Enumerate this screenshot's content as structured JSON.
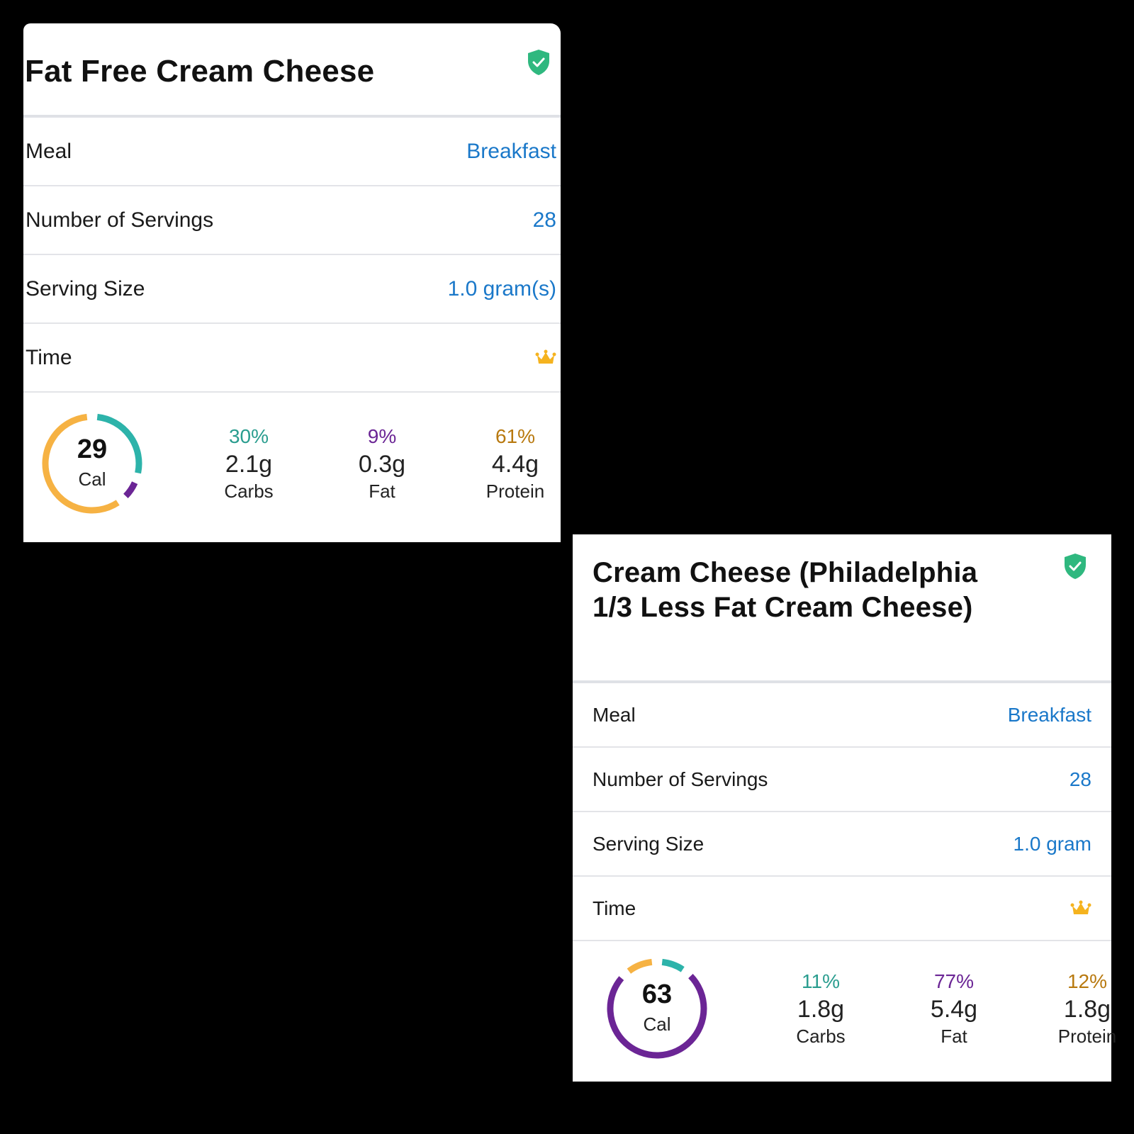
{
  "colors": {
    "carbs": "#2db3aa",
    "fat": "#6b2595",
    "protein": "#f6b243",
    "link": "#1a78c9",
    "verified": "#2fb87f",
    "crown": "#f5b31f"
  },
  "cards": [
    {
      "title": "Fat Free Cream Cheese",
      "verified_icon": "verified-shield-icon",
      "rows": [
        {
          "label": "Meal",
          "value": "Breakfast"
        },
        {
          "label": "Number of Servings",
          "value": "28"
        },
        {
          "label": "Serving Size",
          "value": "1.0 gram(s)"
        },
        {
          "label": "Time",
          "icon": "crown-icon"
        }
      ],
      "calories": "29",
      "calories_unit": "Cal",
      "macros": [
        {
          "name": "Carbs",
          "percent": "30%",
          "grams": "2.1g",
          "fraction": 0.3,
          "color": "#2db3aa",
          "pct_color": "#2a9d8f"
        },
        {
          "name": "Fat",
          "percent": "9%",
          "grams": "0.3g",
          "fraction": 0.09,
          "color": "#6b2595",
          "pct_color": "#6b2595"
        },
        {
          "name": "Protein",
          "percent": "61%",
          "grams": "4.4g",
          "fraction": 0.61,
          "color": "#f6b243",
          "pct_color": "#b8790f"
        }
      ]
    },
    {
      "title": "Cream Cheese (Philadelphia 1/3 Less Fat Cream Cheese)",
      "verified_icon": "verified-shield-icon",
      "rows": [
        {
          "label": "Meal",
          "value": "Breakfast"
        },
        {
          "label": "Number of Servings",
          "value": "28"
        },
        {
          "label": "Serving Size",
          "value": "1.0 gram"
        },
        {
          "label": "Time",
          "icon": "crown-icon"
        }
      ],
      "calories": "63",
      "calories_unit": "Cal",
      "macros": [
        {
          "name": "Carbs",
          "percent": "11%",
          "grams": "1.8g",
          "fraction": 0.11,
          "color": "#2db3aa",
          "pct_color": "#2a9d8f"
        },
        {
          "name": "Fat",
          "percent": "77%",
          "grams": "5.4g",
          "fraction": 0.77,
          "color": "#6b2595",
          "pct_color": "#6b2595"
        },
        {
          "name": "Protein",
          "percent": "12%",
          "grams": "1.8g",
          "fraction": 0.12,
          "color": "#f6b243",
          "pct_color": "#b8790f"
        }
      ]
    }
  ]
}
